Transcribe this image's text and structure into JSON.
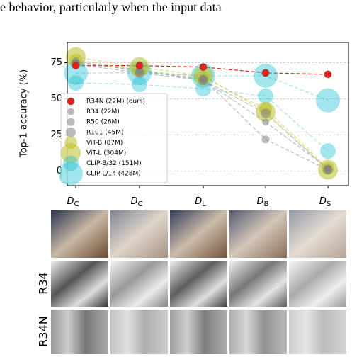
{
  "header_text": "e behavior, particularly when the input data",
  "chart_data": {
    "type": "line",
    "ylabel": "Top-1 accuracy (%)",
    "categories": [
      "DC",
      "DC",
      "DL",
      "DB",
      "DS"
    ],
    "ylim": [
      -10,
      89
    ],
    "yticks": [
      0,
      25,
      50,
      75
    ],
    "grid": true,
    "legend": "upper left",
    "series": [
      {
        "name": "R34N (22M) (ours)",
        "color": "#e8201c",
        "marker_radius": 5,
        "values": [
          73,
          73,
          72,
          68,
          67
        ]
      },
      {
        "name": "R34 (22M)",
        "color": "#7f7f7f88",
        "marker_radius": 5,
        "values": [
          75,
          70,
          63,
          34,
          2
        ]
      },
      {
        "name": "R50 (26M)",
        "color": "#7f7f7f88",
        "marker_radius": 5.5,
        "values": [
          76,
          69,
          64,
          22,
          1
        ]
      },
      {
        "name": "R101 (45M)",
        "color": "#7f7f7f88",
        "marker_radius": 7,
        "values": [
          74,
          68,
          63,
          40,
          1
        ]
      },
      {
        "name": "ViT-B (87M)",
        "color": "#bcbd2288",
        "marker_radius": 9,
        "values": [
          77,
          70,
          65,
          43,
          2
        ]
      },
      {
        "name": "ViT-L (304M)",
        "color": "#bcbd2288",
        "marker_radius": 14,
        "values": [
          79,
          72,
          66,
          41,
          1
        ]
      },
      {
        "name": "CLIP-B/32 (151M)",
        "color": "#17becf66",
        "marker_radius": 11,
        "values": [
          61,
          60,
          57,
          52,
          14
        ]
      },
      {
        "name": "CLIP-L/14 (428M)",
        "color": "#17becf66",
        "marker_radius": 17,
        "values": [
          68,
          68,
          66,
          66,
          49
        ]
      }
    ]
  },
  "image_rows": {
    "labels": [
      "R34",
      "R34N"
    ]
  }
}
